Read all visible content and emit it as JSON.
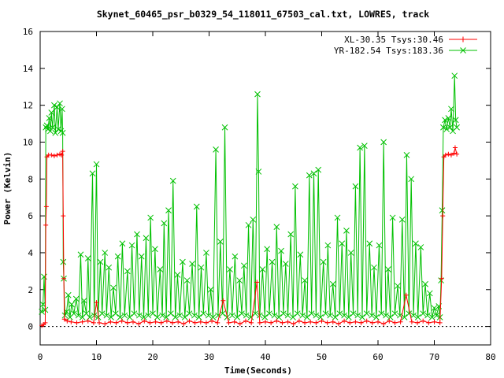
{
  "chart_data": {
    "type": "line",
    "title": "Skynet_60465_psr_b0329_54_118011_67503_cal.txt, LOWRES, track",
    "xlabel": "Time(Seconds)",
    "ylabel": "Power (Kelvin)",
    "xlim": [
      0,
      80
    ],
    "ylim": [
      -1,
      16
    ],
    "x_ticks": [
      0,
      10,
      20,
      30,
      40,
      50,
      60,
      70,
      80
    ],
    "y_ticks": [
      0,
      2,
      4,
      6,
      8,
      10,
      12,
      14,
      16
    ],
    "grid": false,
    "legend_position": "top-right",
    "series": [
      {
        "name": "XL-30.35 Tsys:30.46",
        "color": "#ff0000",
        "marker": "plus",
        "points": [
          [
            0.3,
            0.05
          ],
          [
            0.6,
            0.1
          ],
          [
            0.9,
            0.2
          ],
          [
            1.0,
            5.5
          ],
          [
            1.1,
            6.5
          ],
          [
            1.2,
            9.2
          ],
          [
            1.5,
            9.3
          ],
          [
            2.0,
            9.3
          ],
          [
            2.5,
            9.25
          ],
          [
            3.0,
            9.3
          ],
          [
            3.5,
            9.35
          ],
          [
            3.8,
            9.3
          ],
          [
            4.0,
            9.5
          ],
          [
            4.1,
            6.0
          ],
          [
            4.2,
            2.6
          ],
          [
            4.3,
            0.4
          ],
          [
            4.8,
            0.3
          ],
          [
            5.5,
            0.25
          ],
          [
            6.5,
            0.2
          ],
          [
            7.5,
            0.25
          ],
          [
            8.5,
            0.3
          ],
          [
            9.5,
            0.2
          ],
          [
            10.0,
            1.3
          ],
          [
            10.5,
            0.2
          ],
          [
            11.5,
            0.15
          ],
          [
            12.5,
            0.25
          ],
          [
            13.5,
            0.2
          ],
          [
            14.5,
            0.3
          ],
          [
            15.5,
            0.2
          ],
          [
            16.5,
            0.25
          ],
          [
            17.5,
            0.15
          ],
          [
            18.5,
            0.3
          ],
          [
            19.5,
            0.2
          ],
          [
            20.5,
            0.25
          ],
          [
            21.5,
            0.2
          ],
          [
            22.5,
            0.3
          ],
          [
            23.5,
            0.2
          ],
          [
            24.5,
            0.25
          ],
          [
            25.5,
            0.15
          ],
          [
            26.5,
            0.3
          ],
          [
            27.5,
            0.2
          ],
          [
            28.5,
            0.25
          ],
          [
            29.5,
            0.2
          ],
          [
            30.5,
            0.3
          ],
          [
            31.5,
            0.2
          ],
          [
            32.5,
            1.4
          ],
          [
            33.5,
            0.2
          ],
          [
            34.5,
            0.25
          ],
          [
            35.5,
            0.15
          ],
          [
            36.5,
            0.3
          ],
          [
            37.5,
            0.2
          ],
          [
            38.5,
            2.4
          ],
          [
            39.0,
            0.2
          ],
          [
            40.0,
            0.25
          ],
          [
            41.0,
            0.2
          ],
          [
            42.0,
            0.3
          ],
          [
            43.0,
            0.2
          ],
          [
            44.0,
            0.25
          ],
          [
            45.0,
            0.15
          ],
          [
            46.0,
            0.3
          ],
          [
            47.0,
            0.2
          ],
          [
            48.0,
            0.25
          ],
          [
            49.0,
            0.2
          ],
          [
            50.0,
            0.3
          ],
          [
            51.0,
            0.2
          ],
          [
            52.0,
            0.25
          ],
          [
            53.0,
            0.15
          ],
          [
            54.0,
            0.3
          ],
          [
            55.0,
            0.2
          ],
          [
            56.0,
            0.25
          ],
          [
            57.0,
            0.2
          ],
          [
            58.0,
            0.3
          ],
          [
            59.0,
            0.2
          ],
          [
            60.0,
            0.25
          ],
          [
            61.0,
            0.15
          ],
          [
            62.0,
            0.3
          ],
          [
            63.0,
            0.2
          ],
          [
            64.0,
            0.25
          ],
          [
            65.0,
            1.7
          ],
          [
            66.0,
            0.25
          ],
          [
            67.0,
            0.2
          ],
          [
            68.0,
            0.3
          ],
          [
            69.0,
            0.2
          ],
          [
            70.0,
            0.25
          ],
          [
            71.0,
            0.2
          ],
          [
            71.3,
            2.6
          ],
          [
            71.5,
            6.0
          ],
          [
            71.7,
            9.2
          ],
          [
            72.0,
            9.3
          ],
          [
            72.5,
            9.35
          ],
          [
            73.0,
            9.3
          ],
          [
            73.5,
            9.4
          ],
          [
            73.7,
            9.7
          ],
          [
            74.0,
            9.35
          ]
        ]
      },
      {
        "name": "YR-182.54 Tsys:183.36",
        "color": "#00c000",
        "marker": "cross",
        "points": [
          [
            0.3,
            0.8
          ],
          [
            0.5,
            1.2
          ],
          [
            0.7,
            2.7
          ],
          [
            0.9,
            0.9
          ],
          [
            1.0,
            10.8
          ],
          [
            1.2,
            10.9
          ],
          [
            1.4,
            10.7
          ],
          [
            1.6,
            11.3
          ],
          [
            1.8,
            10.6
          ],
          [
            2.0,
            11.6
          ],
          [
            2.2,
            10.8
          ],
          [
            2.5,
            12.0
          ],
          [
            2.7,
            10.5
          ],
          [
            3.0,
            11.9
          ],
          [
            3.2,
            10.7
          ],
          [
            3.5,
            12.1
          ],
          [
            3.7,
            10.6
          ],
          [
            3.9,
            11.8
          ],
          [
            4.0,
            10.5
          ],
          [
            4.1,
            3.5
          ],
          [
            4.2,
            2.6
          ],
          [
            4.4,
            0.6
          ],
          [
            4.7,
            0.8
          ],
          [
            5.0,
            1.7
          ],
          [
            5.3,
            0.5
          ],
          [
            5.6,
            1.2
          ],
          [
            6.0,
            0.7
          ],
          [
            6.4,
            1.5
          ],
          [
            6.8,
            0.6
          ],
          [
            7.2,
            3.9
          ],
          [
            7.5,
            0.5
          ],
          [
            7.8,
            1.4
          ],
          [
            8.2,
            0.7
          ],
          [
            8.5,
            3.7
          ],
          [
            8.8,
            0.5
          ],
          [
            9.3,
            8.3
          ],
          [
            9.6,
            0.6
          ],
          [
            10.0,
            8.8
          ],
          [
            10.3,
            0.5
          ],
          [
            10.7,
            3.5
          ],
          [
            11.0,
            0.7
          ],
          [
            11.5,
            4.0
          ],
          [
            11.8,
            0.6
          ],
          [
            12.2,
            3.2
          ],
          [
            12.6,
            0.5
          ],
          [
            13.0,
            2.1
          ],
          [
            13.4,
            0.7
          ],
          [
            13.8,
            3.8
          ],
          [
            14.2,
            0.5
          ],
          [
            14.6,
            4.5
          ],
          [
            15.0,
            0.6
          ],
          [
            15.5,
            3.0
          ],
          [
            15.9,
            0.5
          ],
          [
            16.3,
            4.4
          ],
          [
            16.7,
            0.7
          ],
          [
            17.2,
            5.0
          ],
          [
            17.6,
            0.6
          ],
          [
            18.0,
            3.8
          ],
          [
            18.4,
            0.5
          ],
          [
            18.8,
            4.8
          ],
          [
            19.2,
            0.6
          ],
          [
            19.6,
            5.9
          ],
          [
            20.0,
            0.7
          ],
          [
            20.4,
            4.2
          ],
          [
            20.8,
            0.5
          ],
          [
            21.3,
            3.1
          ],
          [
            21.7,
            0.6
          ],
          [
            22.0,
            5.6
          ],
          [
            22.4,
            0.5
          ],
          [
            22.8,
            6.3
          ],
          [
            23.2,
            0.7
          ],
          [
            23.6,
            7.9
          ],
          [
            24.0,
            0.5
          ],
          [
            24.4,
            2.8
          ],
          [
            24.8,
            0.6
          ],
          [
            25.3,
            3.5
          ],
          [
            25.7,
            0.5
          ],
          [
            26.1,
            2.5
          ],
          [
            26.5,
            0.7
          ],
          [
            27.0,
            3.4
          ],
          [
            27.4,
            0.6
          ],
          [
            27.8,
            6.5
          ],
          [
            28.2,
            0.5
          ],
          [
            28.6,
            3.2
          ],
          [
            29.0,
            0.7
          ],
          [
            29.5,
            4.0
          ],
          [
            29.9,
            0.6
          ],
          [
            30.3,
            2.0
          ],
          [
            30.7,
            0.5
          ],
          [
            31.2,
            9.6
          ],
          [
            31.6,
            0.6
          ],
          [
            32.0,
            4.6
          ],
          [
            32.4,
            0.7
          ],
          [
            32.8,
            10.8
          ],
          [
            33.2,
            0.5
          ],
          [
            33.7,
            3.1
          ],
          [
            34.1,
            0.6
          ],
          [
            34.6,
            3.8
          ],
          [
            35.0,
            0.5
          ],
          [
            35.4,
            2.5
          ],
          [
            35.8,
            0.7
          ],
          [
            36.2,
            3.3
          ],
          [
            36.6,
            0.6
          ],
          [
            37.0,
            5.5
          ],
          [
            37.4,
            0.5
          ],
          [
            37.8,
            5.8
          ],
          [
            38.2,
            0.7
          ],
          [
            38.6,
            12.6
          ],
          [
            38.8,
            8.4
          ],
          [
            39.0,
            0.6
          ],
          [
            39.5,
            3.1
          ],
          [
            39.9,
            0.5
          ],
          [
            40.3,
            4.2
          ],
          [
            40.7,
            0.7
          ],
          [
            41.2,
            3.5
          ],
          [
            41.6,
            0.6
          ],
          [
            42.0,
            5.4
          ],
          [
            42.4,
            0.5
          ],
          [
            42.8,
            4.1
          ],
          [
            43.2,
            0.7
          ],
          [
            43.6,
            3.4
          ],
          [
            44.0,
            0.6
          ],
          [
            44.5,
            5.0
          ],
          [
            44.9,
            0.5
          ],
          [
            45.3,
            7.6
          ],
          [
            45.7,
            0.7
          ],
          [
            46.2,
            3.9
          ],
          [
            46.6,
            0.6
          ],
          [
            47.0,
            2.5
          ],
          [
            47.4,
            0.5
          ],
          [
            47.8,
            8.2
          ],
          [
            48.2,
            0.7
          ],
          [
            48.6,
            8.3
          ],
          [
            49.0,
            0.6
          ],
          [
            49.4,
            8.5
          ],
          [
            49.8,
            0.5
          ],
          [
            50.3,
            3.5
          ],
          [
            50.7,
            0.7
          ],
          [
            51.1,
            4.4
          ],
          [
            51.5,
            0.6
          ],
          [
            52.0,
            2.3
          ],
          [
            52.4,
            0.5
          ],
          [
            52.8,
            5.9
          ],
          [
            53.2,
            0.7
          ],
          [
            53.6,
            4.5
          ],
          [
            54.0,
            0.6
          ],
          [
            54.4,
            5.2
          ],
          [
            54.8,
            0.5
          ],
          [
            55.2,
            4.0
          ],
          [
            55.6,
            0.7
          ],
          [
            56.0,
            7.6
          ],
          [
            56.4,
            0.6
          ],
          [
            56.8,
            9.7
          ],
          [
            57.2,
            0.5
          ],
          [
            57.6,
            9.8
          ],
          [
            58.0,
            0.7
          ],
          [
            58.5,
            4.5
          ],
          [
            58.9,
            0.6
          ],
          [
            59.3,
            3.2
          ],
          [
            59.7,
            0.5
          ],
          [
            60.2,
            4.4
          ],
          [
            60.6,
            0.7
          ],
          [
            61.0,
            10.0
          ],
          [
            61.4,
            0.6
          ],
          [
            61.8,
            3.1
          ],
          [
            62.2,
            0.5
          ],
          [
            62.6,
            5.9
          ],
          [
            63.0,
            0.7
          ],
          [
            63.5,
            2.2
          ],
          [
            63.9,
            0.6
          ],
          [
            64.3,
            5.8
          ],
          [
            64.7,
            0.5
          ],
          [
            65.1,
            9.3
          ],
          [
            65.5,
            0.7
          ],
          [
            65.9,
            8.0
          ],
          [
            66.3,
            0.6
          ],
          [
            66.7,
            4.5
          ],
          [
            67.1,
            0.5
          ],
          [
            67.6,
            4.3
          ],
          [
            68.0,
            0.7
          ],
          [
            68.4,
            2.3
          ],
          [
            68.8,
            0.6
          ],
          [
            69.2,
            1.8
          ],
          [
            69.6,
            0.5
          ],
          [
            70.0,
            1.0
          ],
          [
            70.4,
            0.6
          ],
          [
            70.8,
            1.1
          ],
          [
            71.0,
            0.5
          ],
          [
            71.2,
            2.5
          ],
          [
            71.4,
            6.3
          ],
          [
            71.6,
            10.8
          ],
          [
            71.9,
            11.2
          ],
          [
            72.2,
            10.7
          ],
          [
            72.5,
            11.3
          ],
          [
            72.8,
            10.8
          ],
          [
            73.0,
            11.8
          ],
          [
            73.3,
            10.6
          ],
          [
            73.6,
            13.6
          ],
          [
            73.8,
            11.2
          ],
          [
            74.0,
            10.8
          ]
        ]
      }
    ]
  }
}
